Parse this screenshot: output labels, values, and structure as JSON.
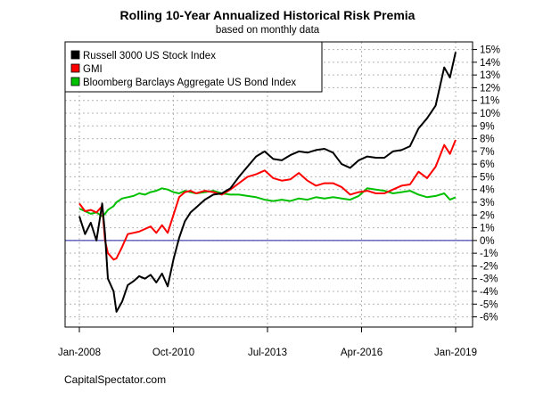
{
  "chart_data": {
    "type": "line",
    "title": "Rolling 10-Year Annualized Historical Risk Premia",
    "subtitle": "based on monthly data",
    "credit": "CapitalSpectator.com",
    "xlabel": "",
    "ylabel": "",
    "x_ticks": [
      "Jan-2008",
      "Oct-2010",
      "Jul-2013",
      "Apr-2016",
      "Jan-2019"
    ],
    "x_range": [
      "2008-01",
      "2019-01"
    ],
    "ylim": [
      -6.8,
      15.6
    ],
    "y_ticks": [
      -6,
      -5,
      -4,
      -3,
      -2,
      -1,
      0,
      1,
      2,
      3,
      4,
      5,
      6,
      7,
      8,
      9,
      10,
      11,
      12,
      13,
      14,
      15
    ],
    "y_tick_suffix": "%",
    "grid": true,
    "legend_position": "top-left",
    "reference_line": {
      "y": 0,
      "color": "#1f1fa0"
    },
    "series": [
      {
        "name": "Russell 3000 US Stock Index",
        "color": "#000000",
        "points": [
          [
            "2008-01",
            1.9
          ],
          [
            "2008-03",
            0.5
          ],
          [
            "2008-05",
            1.4
          ],
          [
            "2008-07",
            0.0
          ],
          [
            "2008-09",
            2.9
          ],
          [
            "2008-10",
            0.5
          ],
          [
            "2008-11",
            -3.0
          ],
          [
            "2009-01",
            -4.0
          ],
          [
            "2009-02",
            -5.6
          ],
          [
            "2009-04",
            -4.8
          ],
          [
            "2009-06",
            -3.5
          ],
          [
            "2009-08",
            -3.2
          ],
          [
            "2009-10",
            -2.8
          ],
          [
            "2009-12",
            -3.0
          ],
          [
            "2010-02",
            -2.7
          ],
          [
            "2010-04",
            -3.3
          ],
          [
            "2010-06",
            -2.6
          ],
          [
            "2010-08",
            -3.6
          ],
          [
            "2010-10",
            -1.5
          ],
          [
            "2010-12",
            0.2
          ],
          [
            "2011-02",
            1.5
          ],
          [
            "2011-04",
            2.2
          ],
          [
            "2011-06",
            2.6
          ],
          [
            "2011-09",
            3.2
          ],
          [
            "2011-12",
            3.6
          ],
          [
            "2012-03",
            3.7
          ],
          [
            "2012-06",
            4.1
          ],
          [
            "2012-09",
            5.0
          ],
          [
            "2012-12",
            5.8
          ],
          [
            "2013-03",
            6.6
          ],
          [
            "2013-06",
            7.0
          ],
          [
            "2013-09",
            6.4
          ],
          [
            "2013-12",
            6.3
          ],
          [
            "2014-03",
            6.7
          ],
          [
            "2014-06",
            7.0
          ],
          [
            "2014-09",
            6.9
          ],
          [
            "2014-12",
            7.1
          ],
          [
            "2015-03",
            7.2
          ],
          [
            "2015-06",
            6.9
          ],
          [
            "2015-09",
            6.0
          ],
          [
            "2015-12",
            5.7
          ],
          [
            "2016-03",
            6.3
          ],
          [
            "2016-06",
            6.6
          ],
          [
            "2016-09",
            6.5
          ],
          [
            "2016-12",
            6.5
          ],
          [
            "2017-03",
            7.0
          ],
          [
            "2017-06",
            7.1
          ],
          [
            "2017-09",
            7.4
          ],
          [
            "2017-12",
            8.8
          ],
          [
            "2018-03",
            9.6
          ],
          [
            "2018-06",
            10.6
          ],
          [
            "2018-09",
            13.6
          ],
          [
            "2018-11",
            12.8
          ],
          [
            "2019-01",
            14.8
          ]
        ]
      },
      {
        "name": "GMI",
        "color": "#ff0000",
        "points": [
          [
            "2008-01",
            2.9
          ],
          [
            "2008-03",
            2.3
          ],
          [
            "2008-05",
            2.4
          ],
          [
            "2008-07",
            2.2
          ],
          [
            "2008-09",
            2.7
          ],
          [
            "2008-10",
            0.0
          ],
          [
            "2008-11",
            -1.0
          ],
          [
            "2009-01",
            -1.5
          ],
          [
            "2009-02",
            -1.4
          ],
          [
            "2009-04",
            -0.5
          ],
          [
            "2009-06",
            0.5
          ],
          [
            "2009-08",
            0.6
          ],
          [
            "2009-10",
            0.7
          ],
          [
            "2009-12",
            0.9
          ],
          [
            "2010-02",
            1.1
          ],
          [
            "2010-04",
            0.6
          ],
          [
            "2010-06",
            1.2
          ],
          [
            "2010-08",
            0.6
          ],
          [
            "2010-10",
            2.0
          ],
          [
            "2010-12",
            3.4
          ],
          [
            "2011-02",
            3.8
          ],
          [
            "2011-04",
            3.9
          ],
          [
            "2011-06",
            3.7
          ],
          [
            "2011-09",
            3.9
          ],
          [
            "2011-12",
            3.8
          ],
          [
            "2012-03",
            3.6
          ],
          [
            "2012-06",
            4.0
          ],
          [
            "2012-09",
            4.5
          ],
          [
            "2012-12",
            5.0
          ],
          [
            "2013-03",
            5.2
          ],
          [
            "2013-06",
            5.5
          ],
          [
            "2013-09",
            4.9
          ],
          [
            "2013-12",
            4.7
          ],
          [
            "2014-03",
            4.8
          ],
          [
            "2014-06",
            5.3
          ],
          [
            "2014-09",
            4.7
          ],
          [
            "2014-12",
            4.3
          ],
          [
            "2015-03",
            4.5
          ],
          [
            "2015-06",
            4.5
          ],
          [
            "2015-09",
            4.2
          ],
          [
            "2015-12",
            3.6
          ],
          [
            "2016-03",
            3.8
          ],
          [
            "2016-06",
            3.9
          ],
          [
            "2016-09",
            3.7
          ],
          [
            "2016-12",
            3.7
          ],
          [
            "2017-03",
            4.0
          ],
          [
            "2017-06",
            4.3
          ],
          [
            "2017-09",
            4.4
          ],
          [
            "2017-12",
            5.4
          ],
          [
            "2018-03",
            4.9
          ],
          [
            "2018-06",
            5.8
          ],
          [
            "2018-09",
            7.5
          ],
          [
            "2018-11",
            6.8
          ],
          [
            "2019-01",
            7.9
          ]
        ]
      },
      {
        "name": "Bloomberg Barclays Aggregate US Bond Index",
        "color": "#00c000",
        "points": [
          [
            "2008-01",
            2.5
          ],
          [
            "2008-03",
            2.3
          ],
          [
            "2008-05",
            2.1
          ],
          [
            "2008-07",
            2.2
          ],
          [
            "2008-09",
            1.9
          ],
          [
            "2008-10",
            2.1
          ],
          [
            "2008-11",
            2.4
          ],
          [
            "2009-01",
            2.7
          ],
          [
            "2009-02",
            3.0
          ],
          [
            "2009-04",
            3.3
          ],
          [
            "2009-06",
            3.4
          ],
          [
            "2009-08",
            3.5
          ],
          [
            "2009-10",
            3.7
          ],
          [
            "2009-12",
            3.6
          ],
          [
            "2010-02",
            3.8
          ],
          [
            "2010-04",
            3.9
          ],
          [
            "2010-06",
            4.1
          ],
          [
            "2010-08",
            4.0
          ],
          [
            "2010-10",
            3.8
          ],
          [
            "2010-12",
            3.7
          ],
          [
            "2011-02",
            3.9
          ],
          [
            "2011-04",
            3.8
          ],
          [
            "2011-06",
            3.7
          ],
          [
            "2011-09",
            3.8
          ],
          [
            "2011-12",
            3.9
          ],
          [
            "2012-03",
            3.7
          ],
          [
            "2012-06",
            3.6
          ],
          [
            "2012-09",
            3.6
          ],
          [
            "2012-12",
            3.5
          ],
          [
            "2013-03",
            3.4
          ],
          [
            "2013-06",
            3.2
          ],
          [
            "2013-09",
            3.1
          ],
          [
            "2013-12",
            3.2
          ],
          [
            "2014-03",
            3.1
          ],
          [
            "2014-06",
            3.3
          ],
          [
            "2014-09",
            3.2
          ],
          [
            "2014-12",
            3.4
          ],
          [
            "2015-03",
            3.3
          ],
          [
            "2015-06",
            3.4
          ],
          [
            "2015-09",
            3.3
          ],
          [
            "2015-12",
            3.2
          ],
          [
            "2016-03",
            3.5
          ],
          [
            "2016-06",
            4.1
          ],
          [
            "2016-09",
            4.0
          ],
          [
            "2016-12",
            3.9
          ],
          [
            "2017-03",
            3.7
          ],
          [
            "2017-06",
            3.8
          ],
          [
            "2017-09",
            3.9
          ],
          [
            "2017-12",
            3.6
          ],
          [
            "2018-03",
            3.4
          ],
          [
            "2018-06",
            3.5
          ],
          [
            "2018-09",
            3.7
          ],
          [
            "2018-11",
            3.2
          ],
          [
            "2019-01",
            3.4
          ]
        ]
      }
    ]
  }
}
